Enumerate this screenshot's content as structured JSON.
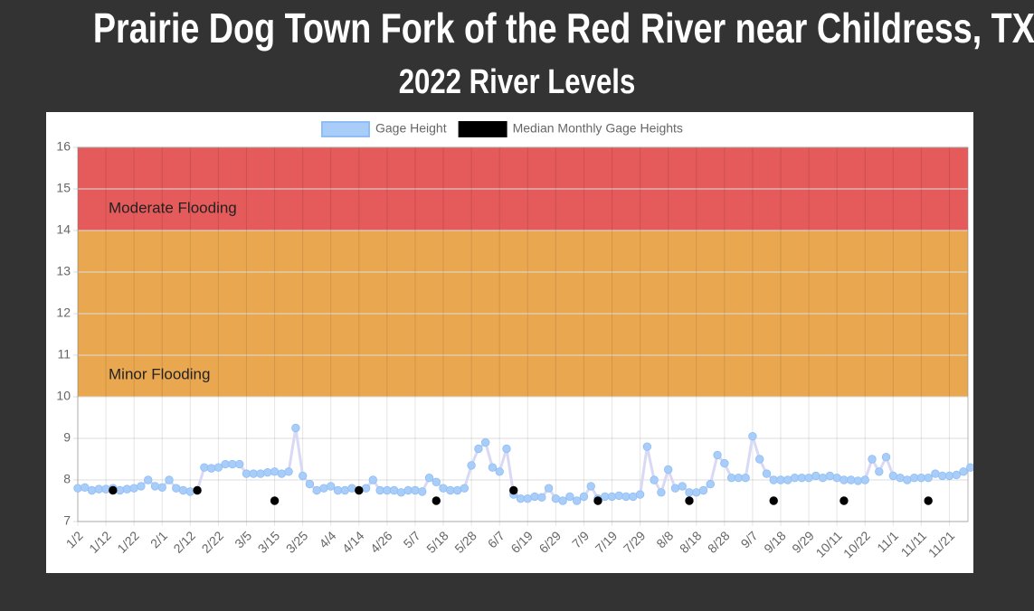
{
  "chart_data": {
    "type": "line",
    "title": "Prairie Dog Town Fork of the Red River near Childress, TX",
    "subtitle": "2022 River Levels",
    "categories": [
      "1/2",
      null,
      null,
      null,
      "1/12",
      null,
      null,
      null,
      "1/22",
      null,
      null,
      null,
      "2/1",
      null,
      null,
      null,
      "2/12",
      null,
      null,
      null,
      "2/22",
      null,
      null,
      null,
      "3/5",
      null,
      null,
      null,
      "3/15",
      null,
      null,
      null,
      "3/25",
      null,
      null,
      null,
      "4/4",
      null,
      null,
      null,
      "4/14",
      null,
      null,
      null,
      "4/26",
      null,
      null,
      null,
      "5/7",
      null,
      null,
      null,
      "5/18",
      null,
      null,
      null,
      "5/28",
      null,
      null,
      null,
      "6/7",
      null,
      null,
      null,
      "6/19",
      null,
      null,
      null,
      "6/29",
      null,
      null,
      null,
      "7/9",
      null,
      null,
      null,
      "7/19",
      null,
      null,
      null,
      "7/29",
      null,
      null,
      null,
      "8/8",
      null,
      null,
      null,
      "8/18",
      null,
      null,
      null,
      "8/28",
      null,
      null,
      null,
      "9/7",
      null,
      null,
      null,
      "9/18",
      null,
      null,
      null,
      "9/29",
      null,
      null,
      null,
      "10/11",
      null,
      null,
      null,
      "10/22",
      null,
      null,
      null,
      "11/1",
      null,
      null,
      null,
      "11/11",
      null,
      null,
      null,
      "11/21",
      null,
      null,
      null
    ],
    "series": [
      {
        "name": "Gage Height",
        "color": "#a8cdf9",
        "values": [
          7.8,
          7.82,
          7.75,
          7.78,
          7.78,
          7.8,
          7.75,
          7.78,
          7.8,
          7.85,
          8.0,
          7.85,
          7.82,
          8.0,
          7.8,
          7.75,
          7.72,
          7.75,
          8.3,
          8.28,
          8.3,
          8.38,
          8.38,
          8.38,
          8.15,
          8.15,
          8.15,
          8.18,
          8.2,
          8.15,
          8.2,
          9.25,
          8.1,
          7.9,
          7.75,
          7.8,
          7.85,
          7.75,
          7.75,
          7.8,
          7.75,
          7.8,
          8.0,
          7.75,
          7.75,
          7.75,
          7.7,
          7.75,
          7.75,
          7.72,
          8.05,
          7.95,
          7.8,
          7.75,
          7.75,
          7.8,
          8.35,
          8.75,
          8.9,
          8.3,
          8.2,
          8.75,
          7.65,
          7.55,
          7.55,
          7.6,
          7.58,
          7.8,
          7.55,
          7.5,
          7.6,
          7.5,
          7.6,
          7.85,
          7.55,
          7.6,
          7.6,
          7.62,
          7.6,
          7.6,
          7.65,
          8.8,
          8.0,
          7.7,
          8.25,
          7.8,
          7.85,
          7.7,
          7.7,
          7.75,
          7.9,
          8.6,
          8.4,
          8.05,
          8.05,
          8.05,
          9.05,
          8.5,
          8.15,
          8.0,
          8.0,
          8.0,
          8.05,
          8.05,
          8.05,
          8.1,
          8.05,
          8.1,
          8.05,
          8.0,
          8.0,
          7.98,
          8.0,
          8.5,
          8.2,
          8.55,
          8.1,
          8.05,
          8.0,
          8.05,
          8.05,
          8.05,
          8.15,
          8.1,
          8.1,
          8.12,
          8.2,
          8.3
        ]
      },
      {
        "name": "Median Monthly Gage Heights",
        "color": "#000000",
        "values": [
          null,
          null,
          null,
          null,
          null,
          7.75,
          null,
          null,
          null,
          null,
          null,
          null,
          null,
          null,
          null,
          null,
          null,
          7.75,
          null,
          null,
          null,
          null,
          null,
          null,
          null,
          null,
          null,
          null,
          7.5,
          null,
          null,
          null,
          null,
          null,
          null,
          null,
          null,
          null,
          null,
          null,
          7.75,
          null,
          null,
          null,
          null,
          null,
          null,
          null,
          null,
          null,
          null,
          7.5,
          null,
          null,
          null,
          null,
          null,
          null,
          null,
          null,
          null,
          null,
          7.75,
          null,
          null,
          null,
          null,
          null,
          null,
          null,
          null,
          null,
          null,
          null,
          7.5,
          null,
          null,
          null,
          null,
          null,
          null,
          null,
          null,
          null,
          null,
          null,
          null,
          7.5,
          null,
          null,
          null,
          null,
          null,
          null,
          null,
          null,
          null,
          null,
          null,
          7.5,
          null,
          null,
          null,
          null,
          null,
          null,
          null,
          null,
          null,
          7.5,
          null,
          null,
          null,
          null,
          null,
          null,
          null,
          null,
          null,
          null,
          null,
          7.5,
          null,
          null,
          null,
          null,
          null,
          null
        ]
      }
    ],
    "bands": [
      {
        "label": "Minor Flooding",
        "from": 10,
        "to": 14,
        "color": "#e9a74f"
      },
      {
        "label": "Moderate Flooding",
        "from": 14,
        "to": 16,
        "color": "#e55a5a"
      }
    ],
    "ylim": [
      7,
      16
    ],
    "yticks": [
      7,
      8,
      9,
      10,
      11,
      12,
      13,
      14,
      15,
      16
    ],
    "grid": true,
    "legend": "top"
  }
}
